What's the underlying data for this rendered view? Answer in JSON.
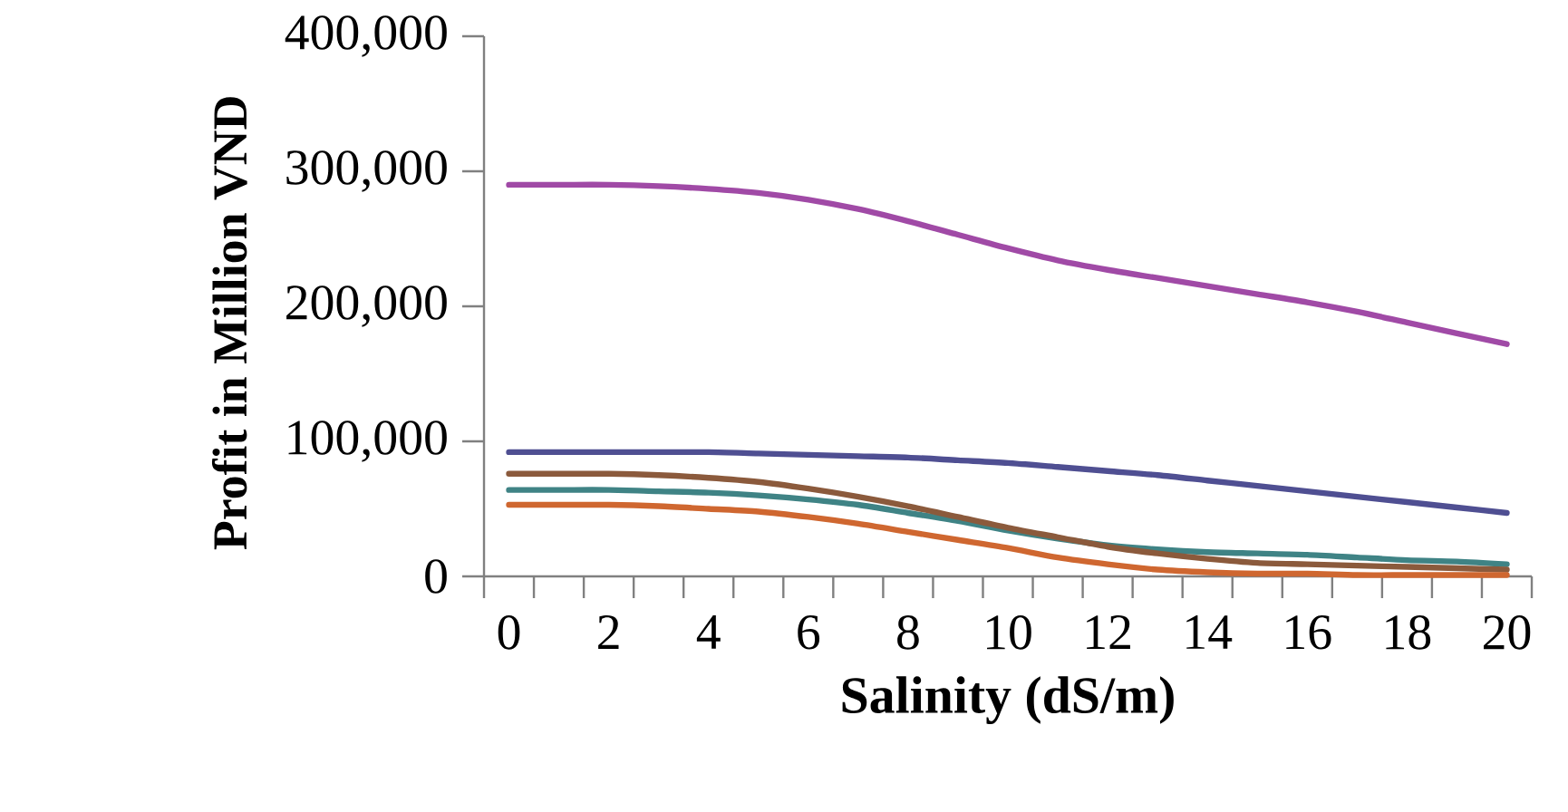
{
  "chart_data": {
    "type": "line",
    "xlabel": "Salinity (dS/m)",
    "ylabel": "Profit in Million VND",
    "categories": [
      "0",
      null,
      "2",
      null,
      "4",
      null,
      "6",
      null,
      "8",
      null,
      "10",
      null,
      "12",
      null,
      "14",
      null,
      "16",
      null,
      "18",
      null,
      "20"
    ],
    "ylim": [
      0,
      400000
    ],
    "yticks": [
      {
        "value": 0,
        "label": "0"
      },
      {
        "value": 100000,
        "label": "100,000"
      },
      {
        "value": 200000,
        "label": "200,000"
      },
      {
        "value": 300000,
        "label": "300,000"
      },
      {
        "value": 400000,
        "label": "400,000"
      }
    ],
    "grid": false,
    "legend": false,
    "marker": "none",
    "line_style": "solid",
    "series": [
      {
        "color": "#a04aa6",
        "values": [
          290000,
          290000,
          290000,
          289000,
          287000,
          284000,
          279000,
          272000,
          263000,
          253000,
          243000,
          234000,
          227000,
          221000,
          215000,
          209000,
          203000,
          196000,
          188000,
          180000,
          172000
        ]
      },
      {
        "color": "#4f4f92",
        "values": [
          92000,
          92000,
          92000,
          92000,
          92000,
          91000,
          90000,
          89000,
          88000,
          86000,
          84000,
          81000,
          78000,
          75000,
          71000,
          67000,
          63000,
          59000,
          55000,
          51000,
          47000
        ]
      },
      {
        "color": "#3f8385",
        "values": [
          64000,
          64000,
          64000,
          63000,
          62000,
          60000,
          57000,
          53000,
          47000,
          41000,
          34000,
          28000,
          23000,
          20000,
          18000,
          17000,
          16000,
          14000,
          12000,
          11000,
          9000
        ]
      },
      {
        "color": "#8b5a3c",
        "values": [
          76000,
          76000,
          76000,
          75000,
          73000,
          70000,
          65000,
          59000,
          52000,
          44000,
          36000,
          29000,
          22000,
          17000,
          13000,
          10000,
          9000,
          8000,
          7000,
          6000,
          5000
        ]
      },
      {
        "color": "#cf6730",
        "values": [
          53000,
          53000,
          53000,
          52000,
          50000,
          48000,
          44000,
          39000,
          33000,
          27000,
          21000,
          14000,
          9000,
          5000,
          3000,
          2000,
          2000,
          1000,
          1000,
          1000,
          1000
        ]
      }
    ]
  }
}
